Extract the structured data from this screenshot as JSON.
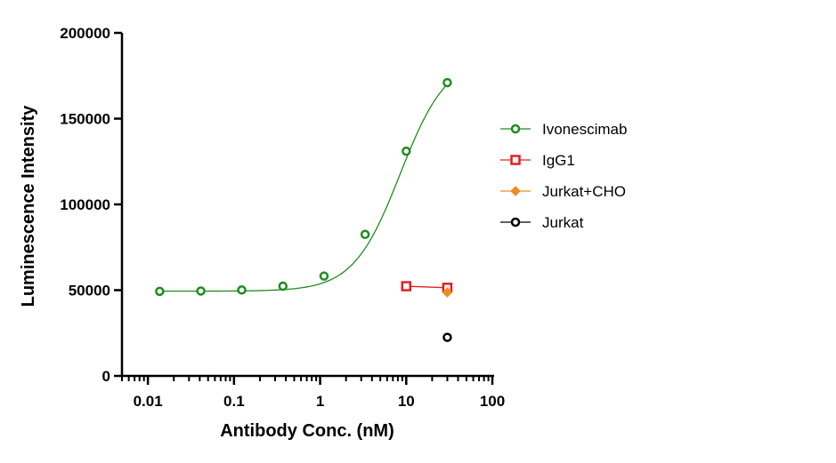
{
  "chart_data": {
    "type": "scatter",
    "xlabel": "Antibody Conc. (nM)",
    "ylabel": "Luminescence Intensity",
    "x_scale": "log",
    "xlim": [
      0.005,
      100
    ],
    "ylim": [
      0,
      200000
    ],
    "x_ticks": [
      "0.01",
      "0.1",
      "1",
      "10",
      "100"
    ],
    "x_tick_values": [
      0.01,
      0.1,
      1,
      10,
      100
    ],
    "y_ticks": [
      "0",
      "50000",
      "100000",
      "150000",
      "200000"
    ],
    "y_tick_values": [
      0,
      50000,
      100000,
      150000,
      200000
    ],
    "grid": false,
    "legend_position": "right",
    "series": [
      {
        "name": "Ivonescimab",
        "color": "#1e8c1e",
        "marker": "circle",
        "x": [
          0.0137,
          0.0412,
          0.123,
          0.37,
          1.11,
          3.33,
          10,
          30
        ],
        "y": [
          49300,
          49500,
          50100,
          52300,
          58200,
          82500,
          131000,
          171000
        ],
        "fit": {
          "bottom": 49400,
          "top": 186000,
          "ec50": 8.5,
          "hill": 1.6
        }
      },
      {
        "name": "IgG1",
        "color": "#e02020",
        "marker": "square",
        "x": [
          10,
          30
        ],
        "y": [
          52300,
          51400
        ]
      },
      {
        "name": "Jurkat+CHO",
        "color": "#f08a24",
        "marker": "diamond",
        "x": [
          30
        ],
        "y": [
          48700
        ]
      },
      {
        "name": "Jurkat",
        "color": "#000000",
        "marker": "circle",
        "x": [
          30
        ],
        "y": [
          22500
        ]
      }
    ]
  }
}
